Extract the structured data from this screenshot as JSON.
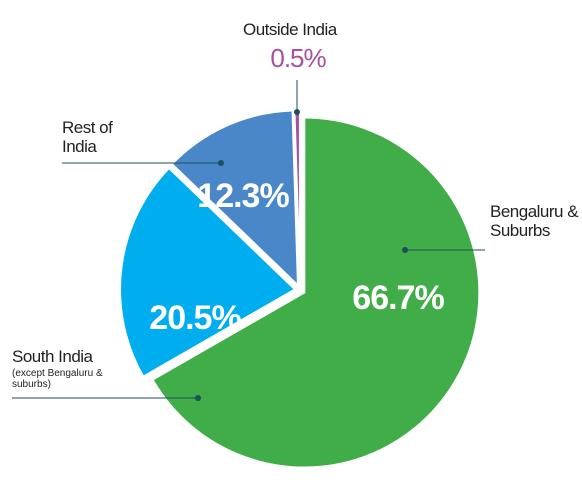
{
  "chart_data": {
    "type": "pie",
    "categories": [
      "Bengaluru & Suburbs",
      "South India",
      "Rest of India",
      "Outside India"
    ],
    "values": [
      66.7,
      20.5,
      12.3,
      0.5
    ],
    "value_labels": [
      "66.7%",
      "20.5%",
      "12.3%",
      "0.5%"
    ],
    "colors": [
      "#41ad49",
      "#00aeef",
      "#4a87c8",
      "#a8509f"
    ],
    "annotations": [
      "(except Bengaluru & suburbs)"
    ]
  }
}
